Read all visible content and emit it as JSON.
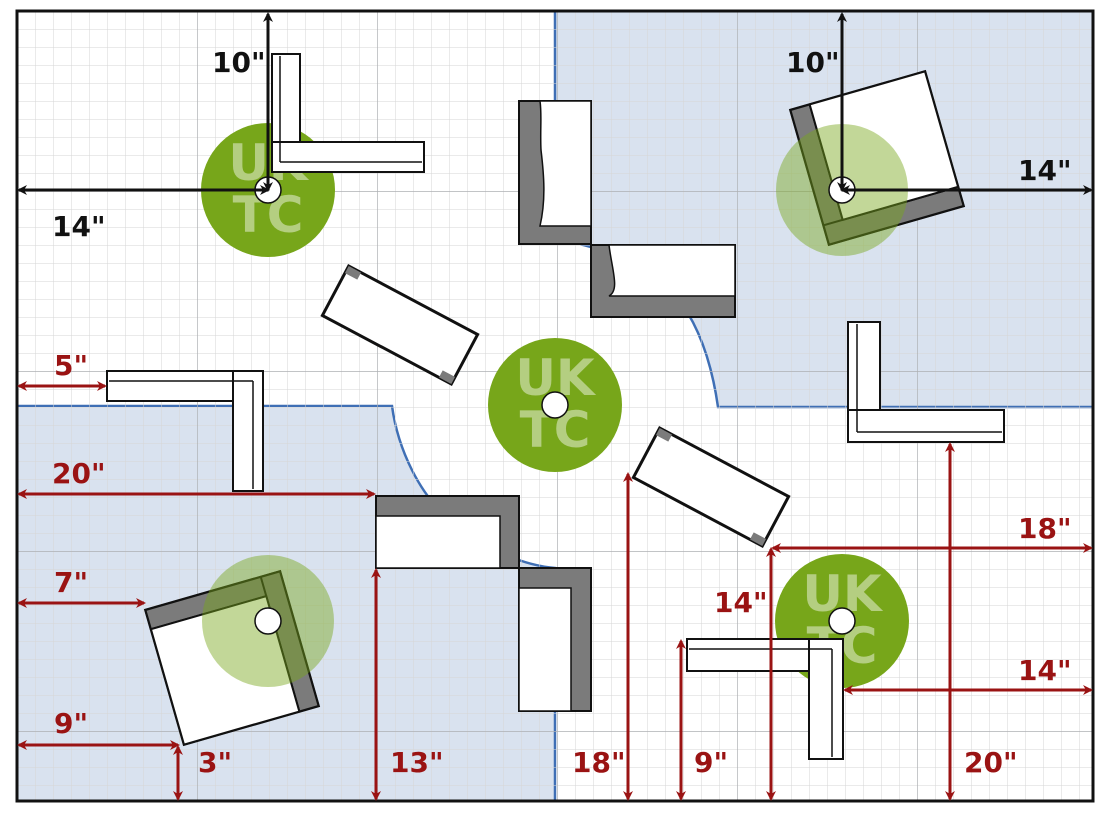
{
  "logo_text": "UKTC",
  "colors": {
    "background": "#ffffff",
    "grid_minor": "#d6d6d6",
    "grid_major": "#aeb0b4",
    "zone_fill": "#d9e2ef",
    "zone_edge": "#3f6fb5",
    "objective_green": "#77a61a",
    "black_dimension": "#111111",
    "red_dimension": "#9a1313",
    "ruin_dark": "#7b7b7b"
  },
  "dimensions": {
    "nw_vertical": "10\"",
    "nw_horizontal": "14\"",
    "ne_vertical": "10\"",
    "ne_horizontal": "14\"",
    "left_5": "5\"",
    "left_20": "20\"",
    "left_7": "7\"",
    "left_9": "9\"",
    "bottom_3": "3\"",
    "bottom_13": "13\"",
    "bottom_18": "18\"",
    "bottom_9": "9\"",
    "mid_14": "14\"",
    "bottom_20": "20\"",
    "right_18": "18\"",
    "right_14": "14\""
  }
}
